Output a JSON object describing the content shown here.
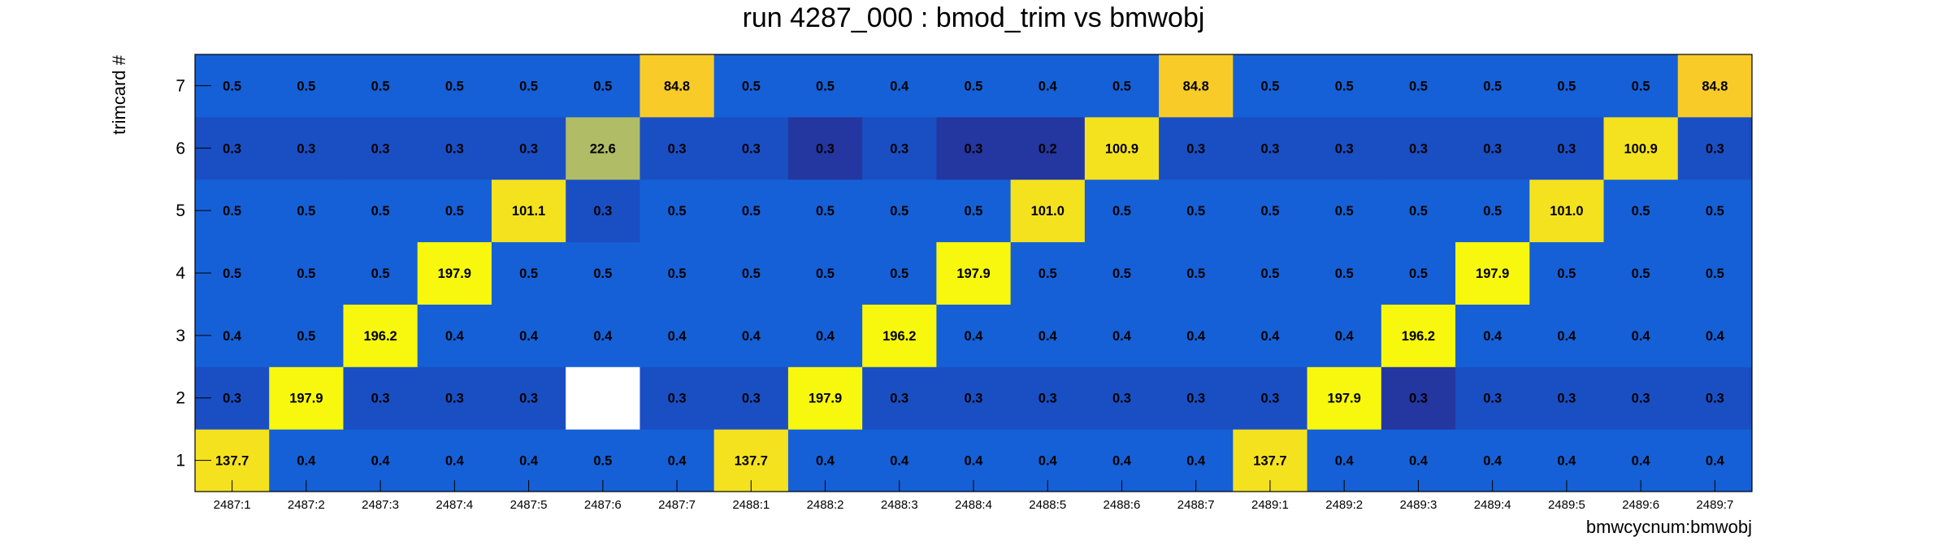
{
  "chart_data": {
    "type": "heatmap",
    "title": "run 4287_000 : bmod_trim vs bmwobj",
    "xlabel": "bmwcycnum:bmwobj",
    "ylabel": "trimcard #",
    "x_categories": [
      "2487:1",
      "2487:2",
      "2487:3",
      "2487:4",
      "2487:5",
      "2487:6",
      "2487:7",
      "2488:1",
      "2488:2",
      "2488:3",
      "2488:4",
      "2488:5",
      "2488:6",
      "2488:7",
      "2489:1",
      "2489:2",
      "2489:3",
      "2489:4",
      "2489:5",
      "2489:6",
      "2489:7"
    ],
    "y_categories": [
      "1",
      "2",
      "3",
      "4",
      "5",
      "6",
      "7"
    ],
    "z_range": [
      0.2,
      197.9
    ],
    "z_labels": [
      [
        "137.7",
        "0.4",
        "0.4",
        "0.4",
        "0.4",
        "0.5",
        "0.4",
        "137.7",
        "0.4",
        "0.4",
        "0.4",
        "0.4",
        "0.4",
        "0.4",
        "137.7",
        "0.4",
        "0.4",
        "0.4",
        "0.4",
        "0.4",
        "0.4"
      ],
      [
        "0.3",
        "197.9",
        "0.3",
        "0.3",
        "0.3",
        null,
        "0.3",
        "0.3",
        "197.9",
        "0.3",
        "0.3",
        "0.3",
        "0.3",
        "0.3",
        "0.3",
        "197.9",
        "0.3",
        "0.3",
        "0.3",
        "0.3",
        "0.3"
      ],
      [
        "0.4",
        "0.5",
        "196.2",
        "0.4",
        "0.4",
        "0.4",
        "0.4",
        "0.4",
        "0.4",
        "196.2",
        "0.4",
        "0.4",
        "0.4",
        "0.4",
        "0.4",
        "0.4",
        "196.2",
        "0.4",
        "0.4",
        "0.4",
        "0.4"
      ],
      [
        "0.5",
        "0.5",
        "0.5",
        "197.9",
        "0.5",
        "0.5",
        "0.5",
        "0.5",
        "0.5",
        "0.5",
        "197.9",
        "0.5",
        "0.5",
        "0.5",
        "0.5",
        "0.5",
        "0.5",
        "197.9",
        "0.5",
        "0.5",
        "0.5"
      ],
      [
        "0.5",
        "0.5",
        "0.5",
        "0.5",
        "101.1",
        "0.3",
        "0.5",
        "0.5",
        "0.5",
        "0.5",
        "0.5",
        "101.0",
        "0.5",
        "0.5",
        "0.5",
        "0.5",
        "0.5",
        "0.5",
        "101.0",
        "0.5",
        "0.5"
      ],
      [
        "0.3",
        "0.3",
        "0.3",
        "0.3",
        "0.3",
        "22.6",
        "0.3",
        "0.3",
        "0.3",
        "0.3",
        "0.3",
        "0.2",
        "100.9",
        "0.3",
        "0.3",
        "0.3",
        "0.3",
        "0.3",
        "0.3",
        "100.9",
        "0.3"
      ],
      [
        "0.5",
        "0.5",
        "0.5",
        "0.5",
        "0.5",
        "0.5",
        "84.8",
        "0.5",
        "0.5",
        "0.4",
        "0.5",
        "0.4",
        "0.5",
        "84.8",
        "0.5",
        "0.5",
        "0.5",
        "0.5",
        "0.5",
        "0.5",
        "84.8"
      ]
    ],
    "cell_colors": [
      [
        "#f5e21f",
        "#1560d6",
        "#1560d6",
        "#1560d6",
        "#1560d6",
        "#1560d6",
        "#1560d6",
        "#f5e21f",
        "#1560d6",
        "#1560d6",
        "#1560d6",
        "#1560d6",
        "#1560d6",
        "#1560d6",
        "#f5e21f",
        "#1560d6",
        "#1560d6",
        "#1560d6",
        "#1560d6",
        "#1560d6",
        "#1560d6"
      ],
      [
        "#1a4fc4",
        "#f8f80e",
        "#1a4fc4",
        "#1a4fc4",
        "#1a4fc4",
        "#ffffff",
        "#1a4fc4",
        "#1a4fc4",
        "#f8f80e",
        "#1a4fc4",
        "#1a4fc4",
        "#1a4fc4",
        "#1a4fc4",
        "#1a4fc4",
        "#1a4fc4",
        "#f8f80e",
        "#2436a0",
        "#1a4fc4",
        "#1a4fc4",
        "#1a4fc4",
        "#1a4fc4"
      ],
      [
        "#1560d6",
        "#1560d6",
        "#f8f80e",
        "#1560d6",
        "#1560d6",
        "#1560d6",
        "#1560d6",
        "#1560d6",
        "#1560d6",
        "#f8f80e",
        "#1560d6",
        "#1560d6",
        "#1560d6",
        "#1560d6",
        "#1560d6",
        "#1560d6",
        "#f8f80e",
        "#1560d6",
        "#1560d6",
        "#1560d6",
        "#1560d6"
      ],
      [
        "#1560d6",
        "#1560d6",
        "#1560d6",
        "#f8f80e",
        "#1560d6",
        "#1560d6",
        "#1560d6",
        "#1560d6",
        "#1560d6",
        "#1560d6",
        "#f8f80e",
        "#1560d6",
        "#1560d6",
        "#1560d6",
        "#1560d6",
        "#1560d6",
        "#1560d6",
        "#f8f80e",
        "#1560d6",
        "#1560d6",
        "#1560d6"
      ],
      [
        "#1560d6",
        "#1560d6",
        "#1560d6",
        "#1560d6",
        "#f5e21f",
        "#1a4fc4",
        "#1560d6",
        "#1560d6",
        "#1560d6",
        "#1560d6",
        "#1560d6",
        "#f5e21f",
        "#1560d6",
        "#1560d6",
        "#1560d6",
        "#1560d6",
        "#1560d6",
        "#1560d6",
        "#f5e21f",
        "#1560d6",
        "#1560d6"
      ],
      [
        "#1a4fc4",
        "#1a4fc4",
        "#1a4fc4",
        "#1a4fc4",
        "#1a4fc4",
        "#b0bc66",
        "#1a4fc4",
        "#1a4fc4",
        "#2436a0",
        "#1a4fc4",
        "#2436a0",
        "#2436a0",
        "#f5e21f",
        "#1a4fc4",
        "#1a4fc4",
        "#1a4fc4",
        "#1a4fc4",
        "#1a4fc4",
        "#1a4fc4",
        "#f5e21f",
        "#1a4fc4"
      ],
      [
        "#1560d6",
        "#1560d6",
        "#1560d6",
        "#1560d6",
        "#1560d6",
        "#1560d6",
        "#f8cb28",
        "#1560d6",
        "#1560d6",
        "#1560d6",
        "#1560d6",
        "#1560d6",
        "#1560d6",
        "#f8cb28",
        "#1560d6",
        "#1560d6",
        "#1560d6",
        "#1560d6",
        "#1560d6",
        "#1560d6",
        "#f8cb28"
      ]
    ],
    "grid": false,
    "legend": "none"
  }
}
